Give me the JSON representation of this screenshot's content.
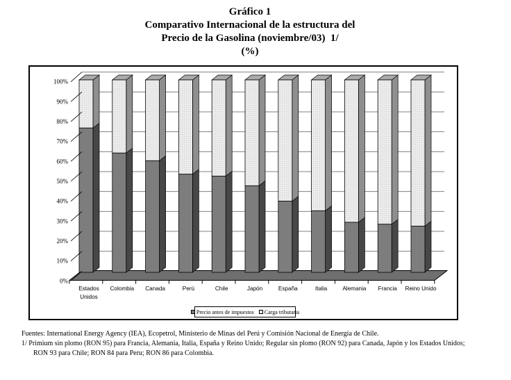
{
  "title": {
    "line1": "Gráfico 1",
    "line2": "Comparativo Internacional de la estructura del",
    "line3": "Precio de la Gasolina (noviembre/03)  1/",
    "line4": "(%)"
  },
  "legend": {
    "series1_label": "Precio antes de impuestos",
    "series2_label": "Carga tributaria"
  },
  "footnotes": {
    "line1": "Fuentes: International Energy Agency (IEA), Ecopetrol, Ministerio de Minas del Perú y Comisión Nacional de Energía de Chile.",
    "line2": "1/ Primium sin plomo (RON 95) para Francia, Alemania, Italia, España y Reino Unido; Regular sin plomo (RON 92) para Canada, Japón y los Estados Unidos;",
    "line3": "RON 93 para Chile; RON 84 para Peru; RON 86 para Colombia."
  },
  "colors": {
    "bar_front_dark": "#7d7d7d",
    "bar_side_dark": "#474747",
    "bar_front_light": "#ebebeb",
    "bar_light_dot": "#d0d0d0",
    "bar_side_light": "#8f8f8f",
    "bar_top": "#aaaaaa",
    "floor": "#6f6f6f",
    "gridline": "#808080",
    "axis": "#000000"
  },
  "chart_data": {
    "type": "bar",
    "stacked": true,
    "is3d": true,
    "title": "Comparativo Internacional de la estructura del Precio de la Gasolina (noviembre/03) (%)",
    "categories": [
      "Estados Unidos",
      "Colombia",
      "Canada",
      "Perú",
      "Chile",
      "Japón",
      "España",
      "Italia",
      "Alemania",
      "Francia",
      "Reino Unido"
    ],
    "series": [
      {
        "name": "Precio antes de impuestos",
        "values": [
          75,
          62,
          58,
          51,
          50,
          45,
          37,
          32,
          26,
          25,
          24
        ]
      },
      {
        "name": "Carga tributaria",
        "values": [
          25,
          38,
          42,
          49,
          50,
          55,
          63,
          68,
          74,
          75,
          76
        ]
      }
    ],
    "xlabel": "",
    "ylabel": "",
    "ylim": [
      0,
      100
    ],
    "yticks": [
      "0%",
      "10%",
      "20%",
      "30%",
      "40%",
      "50%",
      "60%",
      "70%",
      "80%",
      "90%",
      "100%"
    ],
    "grid": true,
    "legend_position": "bottom"
  }
}
